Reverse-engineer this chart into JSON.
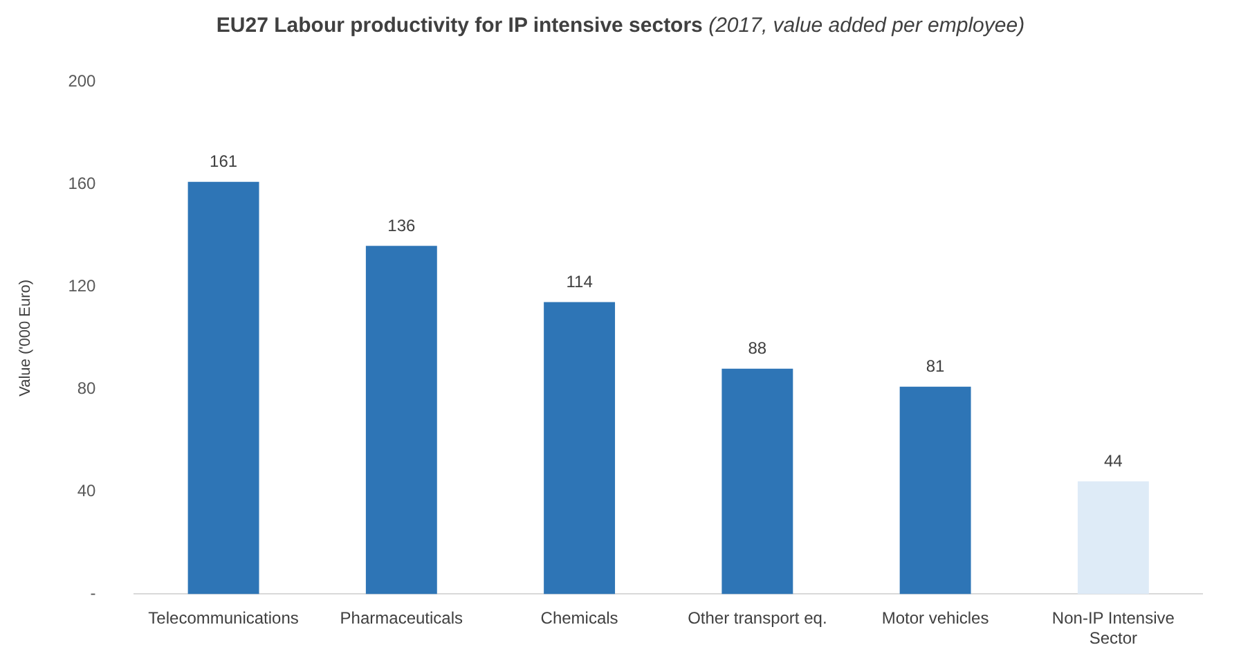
{
  "chart_data": {
    "type": "bar",
    "title": "EU27 Labour productivity for IP intensive sectors",
    "subtitle": "(2017, value added per employee)",
    "ylabel": "Value ('000 Euro)",
    "categories": [
      "Telecommunications",
      "Pharmaceuticals",
      "Chemicals",
      "Other transport eq.",
      "Motor vehicles",
      "Non-IP Intensive Sector"
    ],
    "values": [
      161,
      136,
      114,
      88,
      81,
      44
    ],
    "colors": [
      "#2e75b6",
      "#2e75b6",
      "#2e75b6",
      "#2e75b6",
      "#2e75b6",
      "#deebf7"
    ],
    "ylim": [
      0,
      200
    ],
    "yticks": [
      {
        "value": 0,
        "label": "-"
      },
      40,
      80,
      120,
      160,
      200
    ],
    "grid": false,
    "legend": false,
    "data_labels": true
  }
}
